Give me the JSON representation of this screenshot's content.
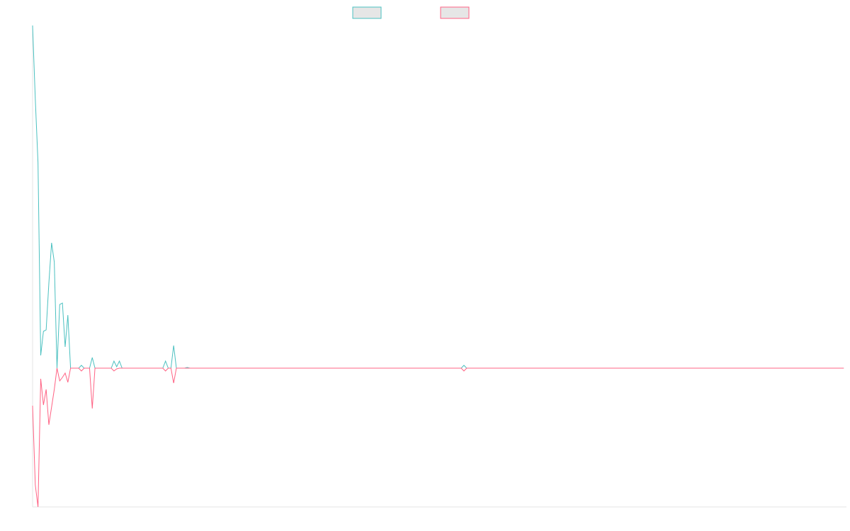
{
  "chart_data": {
    "type": "line",
    "x": [
      0,
      1,
      2,
      3,
      4,
      5,
      6,
      7,
      8,
      9,
      10,
      11,
      12,
      13,
      14,
      17,
      18,
      19,
      21,
      22,
      23,
      29,
      30,
      31,
      32,
      33,
      34,
      48,
      49,
      50,
      51,
      52,
      53,
      56,
      57,
      58,
      158,
      159,
      160,
      299
    ],
    "series": [
      {
        "color": "#4bc0c0",
        "values": [
          484,
          380,
          290,
          18,
          52,
          54,
          120,
          177,
          150,
          0,
          90,
          92,
          30,
          75,
          0,
          0,
          4,
          0,
          0,
          15,
          0,
          0,
          10,
          2,
          10,
          0,
          0,
          0,
          10,
          0,
          0,
          32,
          0,
          0,
          1,
          0,
          0,
          4,
          0,
          0
        ]
      },
      {
        "color": "#ff6384",
        "values": [
          -53,
          -165,
          -196,
          -15,
          -52,
          -30,
          -80,
          -55,
          -30,
          0,
          -18,
          -13,
          -7,
          -20,
          0,
          0,
          -4,
          0,
          0,
          -57,
          0,
          0,
          -4,
          -1,
          0,
          0,
          0,
          0,
          -4,
          0,
          0,
          -21,
          0,
          0,
          0,
          0,
          0,
          -4,
          0,
          0
        ]
      }
    ],
    "xlim": [
      0,
      300
    ],
    "ylim": [
      -196,
      484
    ],
    "legend": "top"
  }
}
